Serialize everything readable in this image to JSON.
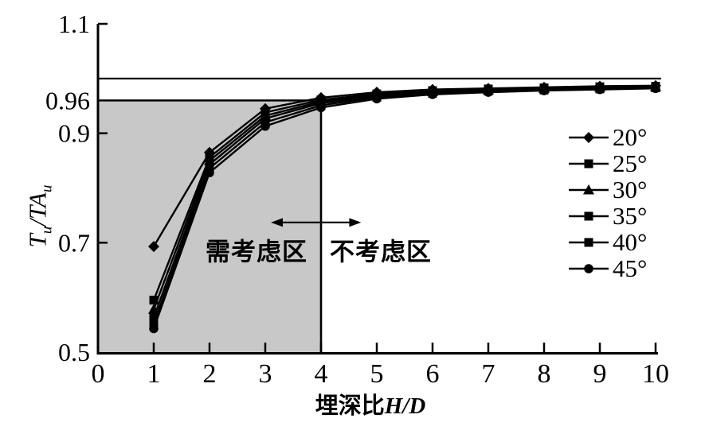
{
  "figure": {
    "ylabel_parts": [
      "T",
      "u",
      "/TA",
      "u"
    ],
    "xlabel_cjk": "埋深比",
    "xlabel_var": "H/D",
    "annotation_left": "需考虑区",
    "annotation_right": "不考虑区"
  },
  "chart_data": {
    "type": "line",
    "title": "",
    "xlabel": "埋深比H/D",
    "ylabel": "Tu/TAu",
    "xlim": [
      0,
      10
    ],
    "ylim": [
      0.5,
      1.1
    ],
    "grid": false,
    "legend_position": "right",
    "x": [
      1,
      2,
      3,
      4,
      5,
      6,
      7,
      8,
      9,
      10
    ],
    "series": [
      {
        "name": "20°",
        "marker": "diamond",
        "values": [
          0.693,
          0.865,
          0.945,
          0.965,
          0.975,
          0.98,
          0.982,
          0.984,
          0.986,
          0.987
        ]
      },
      {
        "name": "25°",
        "marker": "square",
        "values": [
          0.595,
          0.856,
          0.938,
          0.961,
          0.972,
          0.978,
          0.981,
          0.983,
          0.985,
          0.986
        ]
      },
      {
        "name": "30°",
        "marker": "triangle",
        "values": [
          0.578,
          0.85,
          0.932,
          0.958,
          0.97,
          0.976,
          0.979,
          0.982,
          0.984,
          0.985
        ]
      },
      {
        "name": "35°",
        "marker": "square",
        "values": [
          0.563,
          0.843,
          0.927,
          0.955,
          0.968,
          0.975,
          0.978,
          0.98,
          0.982,
          0.984
        ]
      },
      {
        "name": "40°",
        "marker": "square",
        "values": [
          0.552,
          0.836,
          0.92,
          0.951,
          0.966,
          0.973,
          0.977,
          0.979,
          0.981,
          0.983
        ]
      },
      {
        "name": "45°",
        "marker": "circle",
        "values": [
          0.543,
          0.828,
          0.913,
          0.947,
          0.963,
          0.971,
          0.975,
          0.978,
          0.98,
          0.982
        ]
      }
    ],
    "x_ticks": [
      "0",
      "1",
      "2",
      "3",
      "4",
      "5",
      "6",
      "7",
      "8",
      "9",
      "10"
    ],
    "y_ticks": [
      {
        "v": 1.1,
        "label": "1.1",
        "tick_mark": true
      },
      {
        "v": 0.96,
        "label": "0.96",
        "tick_mark": false
      },
      {
        "v": 0.9,
        "label": "0.9",
        "tick_mark": true
      },
      {
        "v": 0.7,
        "label": "0.7",
        "tick_mark": true
      },
      {
        "v": 0.5,
        "label": "0.5",
        "tick_mark": false
      }
    ],
    "reference_line_y": 1.0,
    "threshold_y": 0.96,
    "shaded_region": {
      "x0": 0,
      "x1": 4,
      "y0": 0.5,
      "y1": 0.96,
      "fill": "#c8c8c8"
    },
    "arrow": {
      "y": 0.737,
      "x0": 3.1,
      "x1": 4.72
    },
    "colors": {
      "line": "#000000",
      "background": "#ffffff"
    }
  }
}
